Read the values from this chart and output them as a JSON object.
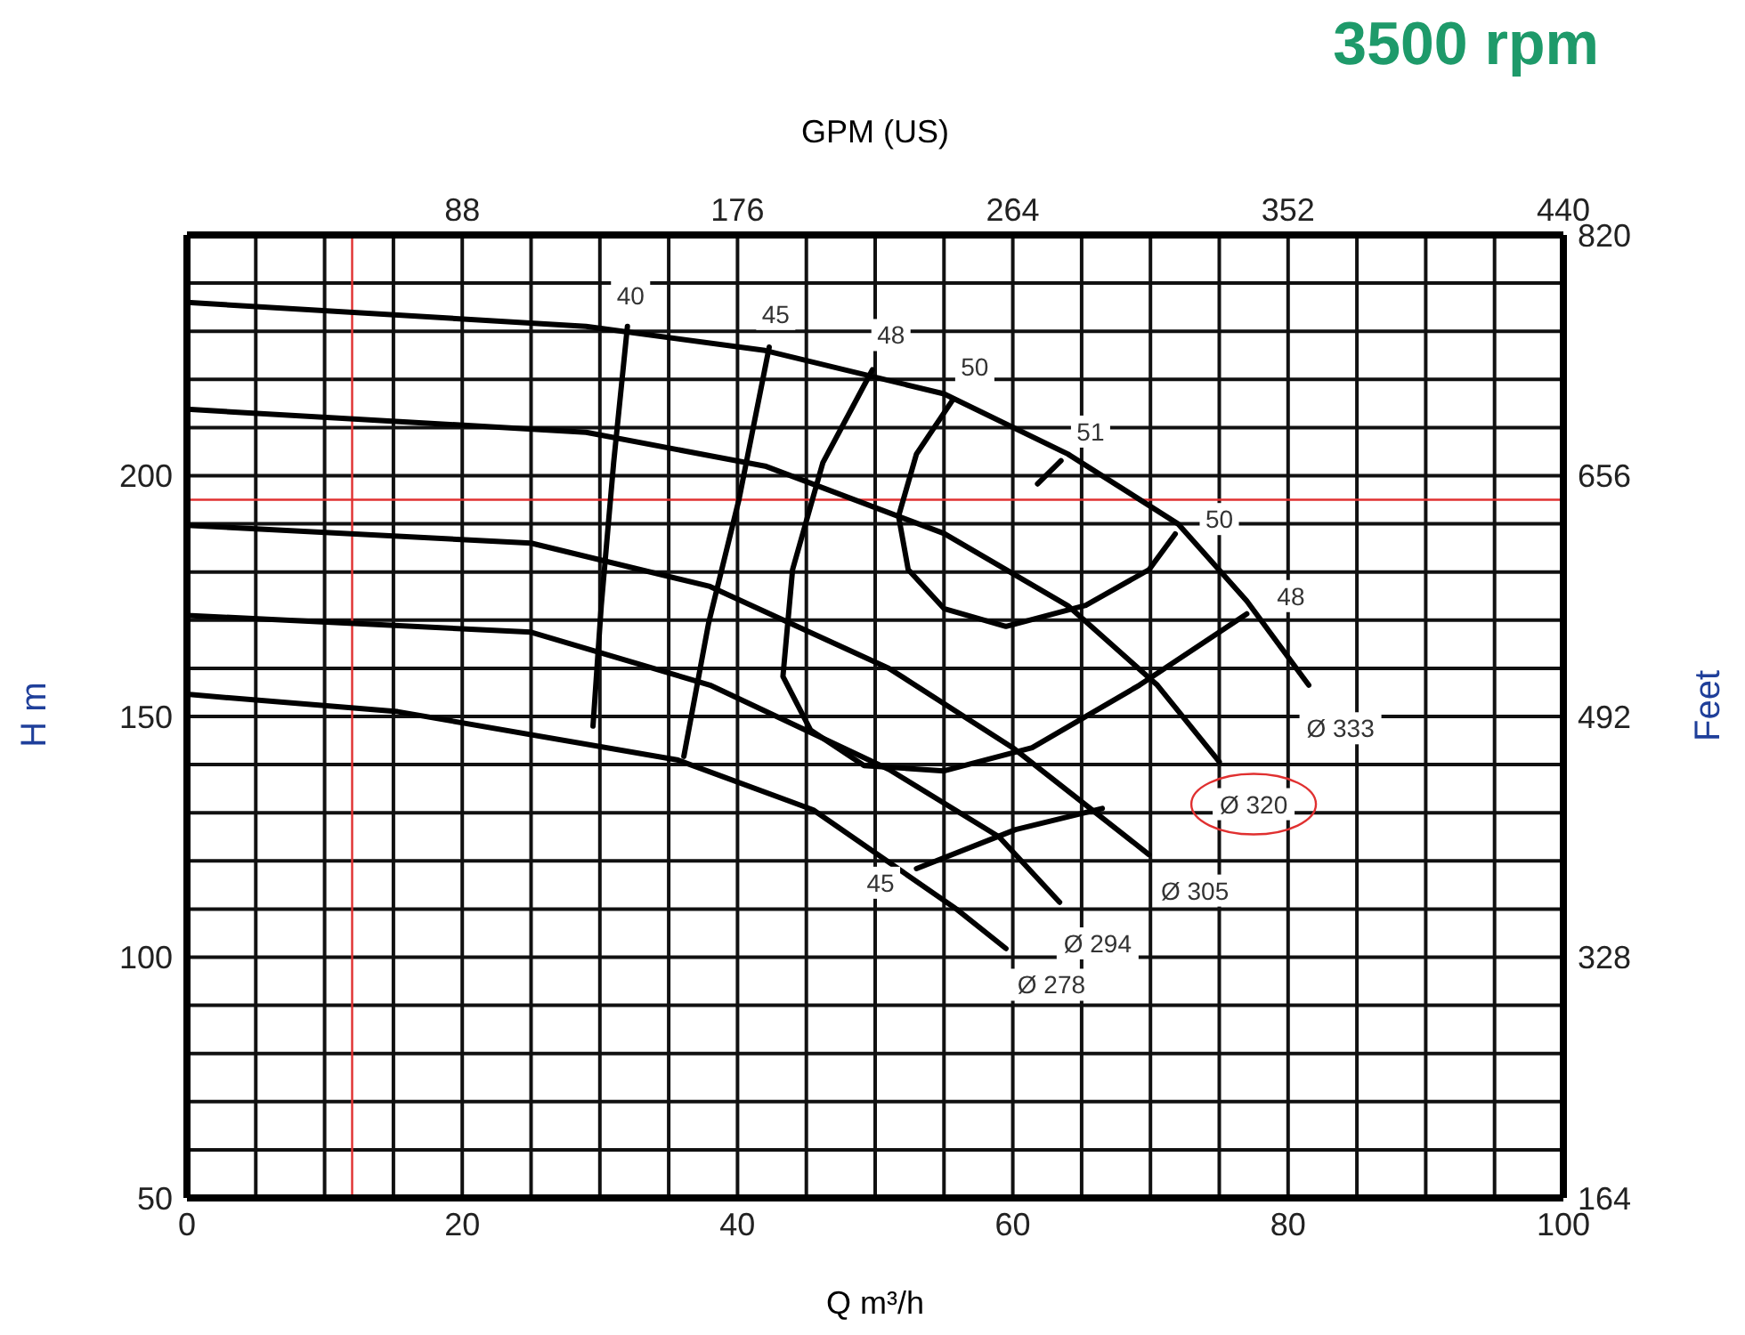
{
  "chart_data": {
    "type": "line",
    "title": "3500 rpm",
    "xlabel": "Q m³/h",
    "ylabel": "H m",
    "x2label": "GPM (US)",
    "y2label": "Feet",
    "xlim": [
      0,
      100
    ],
    "xticks": [
      0,
      {
        "value": 5,
        "label": null
      },
      {
        "value": 10,
        "label": null
      },
      {
        "value": 15,
        "label": null
      },
      20,
      {
        "value": 25,
        "label": null
      },
      {
        "value": 30,
        "label": null
      },
      {
        "value": 35,
        "label": null
      },
      40,
      {
        "value": 45,
        "label": null
      },
      {
        "value": 50,
        "label": null
      },
      {
        "value": 55,
        "label": null
      },
      60,
      {
        "value": 65,
        "label": null
      },
      {
        "value": 70,
        "label": null
      },
      {
        "value": 75,
        "label": null
      },
      80,
      {
        "value": 85,
        "label": null
      },
      {
        "value": 90,
        "label": null
      },
      {
        "value": 95,
        "label": null
      },
      100
    ],
    "ylim": [
      50,
      250
    ],
    "yticks": [
      50,
      {
        "value": 60,
        "label": null
      },
      {
        "value": 70,
        "label": null
      },
      {
        "value": 80,
        "label": null
      },
      {
        "value": 90,
        "label": null
      },
      100,
      {
        "value": 110,
        "label": null
      },
      {
        "value": 120,
        "label": null
      },
      {
        "value": 130,
        "label": null
      },
      {
        "value": 140,
        "label": null
      },
      150,
      {
        "value": 160,
        "label": null
      },
      {
        "value": 170,
        "label": null
      },
      {
        "value": 180,
        "label": null
      },
      {
        "value": 190,
        "label": null
      },
      200,
      {
        "value": 210,
        "label": null
      },
      {
        "value": 220,
        "label": null
      },
      {
        "value": 230,
        "label": null
      },
      {
        "value": 240,
        "label": null
      },
      {
        "value": 250,
        "label": null
      }
    ],
    "x2lim": [
      0,
      440
    ],
    "x2ticks": [
      88,
      176,
      264,
      352,
      440
    ],
    "y2lim": [
      164,
      820
    ],
    "y2ticks": [
      164,
      328,
      492,
      656,
      820
    ],
    "grid": true,
    "line_style": "solid",
    "series": [
      {
        "name": "Ø 333",
        "color": "#000000",
        "x": [
          81.5,
          77,
          72,
          64,
          55,
          42,
          29,
          0
        ],
        "values": [
          156.5,
          174,
          190,
          204.5,
          217,
          226,
          231,
          236
        ]
      },
      {
        "name": "Ø 320",
        "color": "#000000",
        "x": [
          75,
          70.5,
          64,
          55,
          42,
          29,
          0
        ],
        "values": [
          140.6,
          156.5,
          173,
          188,
          202,
          209,
          213.8
        ]
      },
      {
        "name": "Ø 305",
        "color": "#000000",
        "x": [
          69.9,
          60,
          51,
          38,
          25,
          0
        ],
        "values": [
          121.3,
          143.5,
          160,
          177,
          186,
          189.7
        ]
      },
      {
        "name": "Ø 294",
        "color": "#000000",
        "x": [
          63.4,
          59,
          51,
          38,
          25,
          0
        ],
        "values": [
          111.4,
          125,
          139,
          156.5,
          167.5,
          171
        ]
      },
      {
        "name": "Ø 278",
        "color": "#000000",
        "x": [
          59.5,
          55.9,
          45.5,
          35.6,
          15.3,
          0
        ],
        "values": [
          101.8,
          110,
          130.6,
          141,
          151,
          154.6
        ]
      },
      {
        "name": "40",
        "color": "#000000",
        "x": [
          32,
          31,
          30.1,
          29.5
        ],
        "values": [
          231,
          202.7,
          173,
          148
        ]
      },
      {
        "name": "45",
        "color": "#000000",
        "x": [
          42.3,
          40.1,
          37.9,
          36.1
        ],
        "values": [
          226.7,
          195,
          169.4,
          141.7
        ]
      },
      {
        "name": "48",
        "color": "#000000",
        "x": [
          49.8,
          46.2,
          44,
          43.3,
          45.3,
          49.2,
          55,
          61.4,
          69.2,
          77
        ],
        "values": [
          222,
          202.7,
          180.5,
          158.3,
          147.2,
          139.8,
          138.7,
          143.5,
          156.5,
          171.3
        ]
      },
      {
        "name": "50",
        "color": "#000000",
        "x": [
          55.6,
          53,
          51.7,
          52.4,
          55,
          59.5,
          65.3,
          69.9,
          71.8
        ],
        "values": [
          215.6,
          204.5,
          191.6,
          180.5,
          172.4,
          168.7,
          173.1,
          180.5,
          187.9
        ]
      },
      {
        "name": "51",
        "color": "#000000",
        "x": [
          63.5,
          61.8
        ],
        "values": [
          203.1,
          198.3
        ]
      },
      {
        "name": "45",
        "color": "#000000",
        "x": [
          53,
          60.2,
          66.5
        ],
        "values": [
          118.4,
          126.5,
          130.9
        ]
      }
    ],
    "annotations": [
      {
        "text": "50",
        "x": 75,
        "y": 191
      },
      {
        "text": "48",
        "x": 80.2,
        "y": 175
      }
    ],
    "ref_lines": [
      {
        "axis": "x",
        "value": 12,
        "color": "#e03030"
      },
      {
        "axis": "y",
        "value": 195,
        "color": "#e03030"
      }
    ]
  }
}
